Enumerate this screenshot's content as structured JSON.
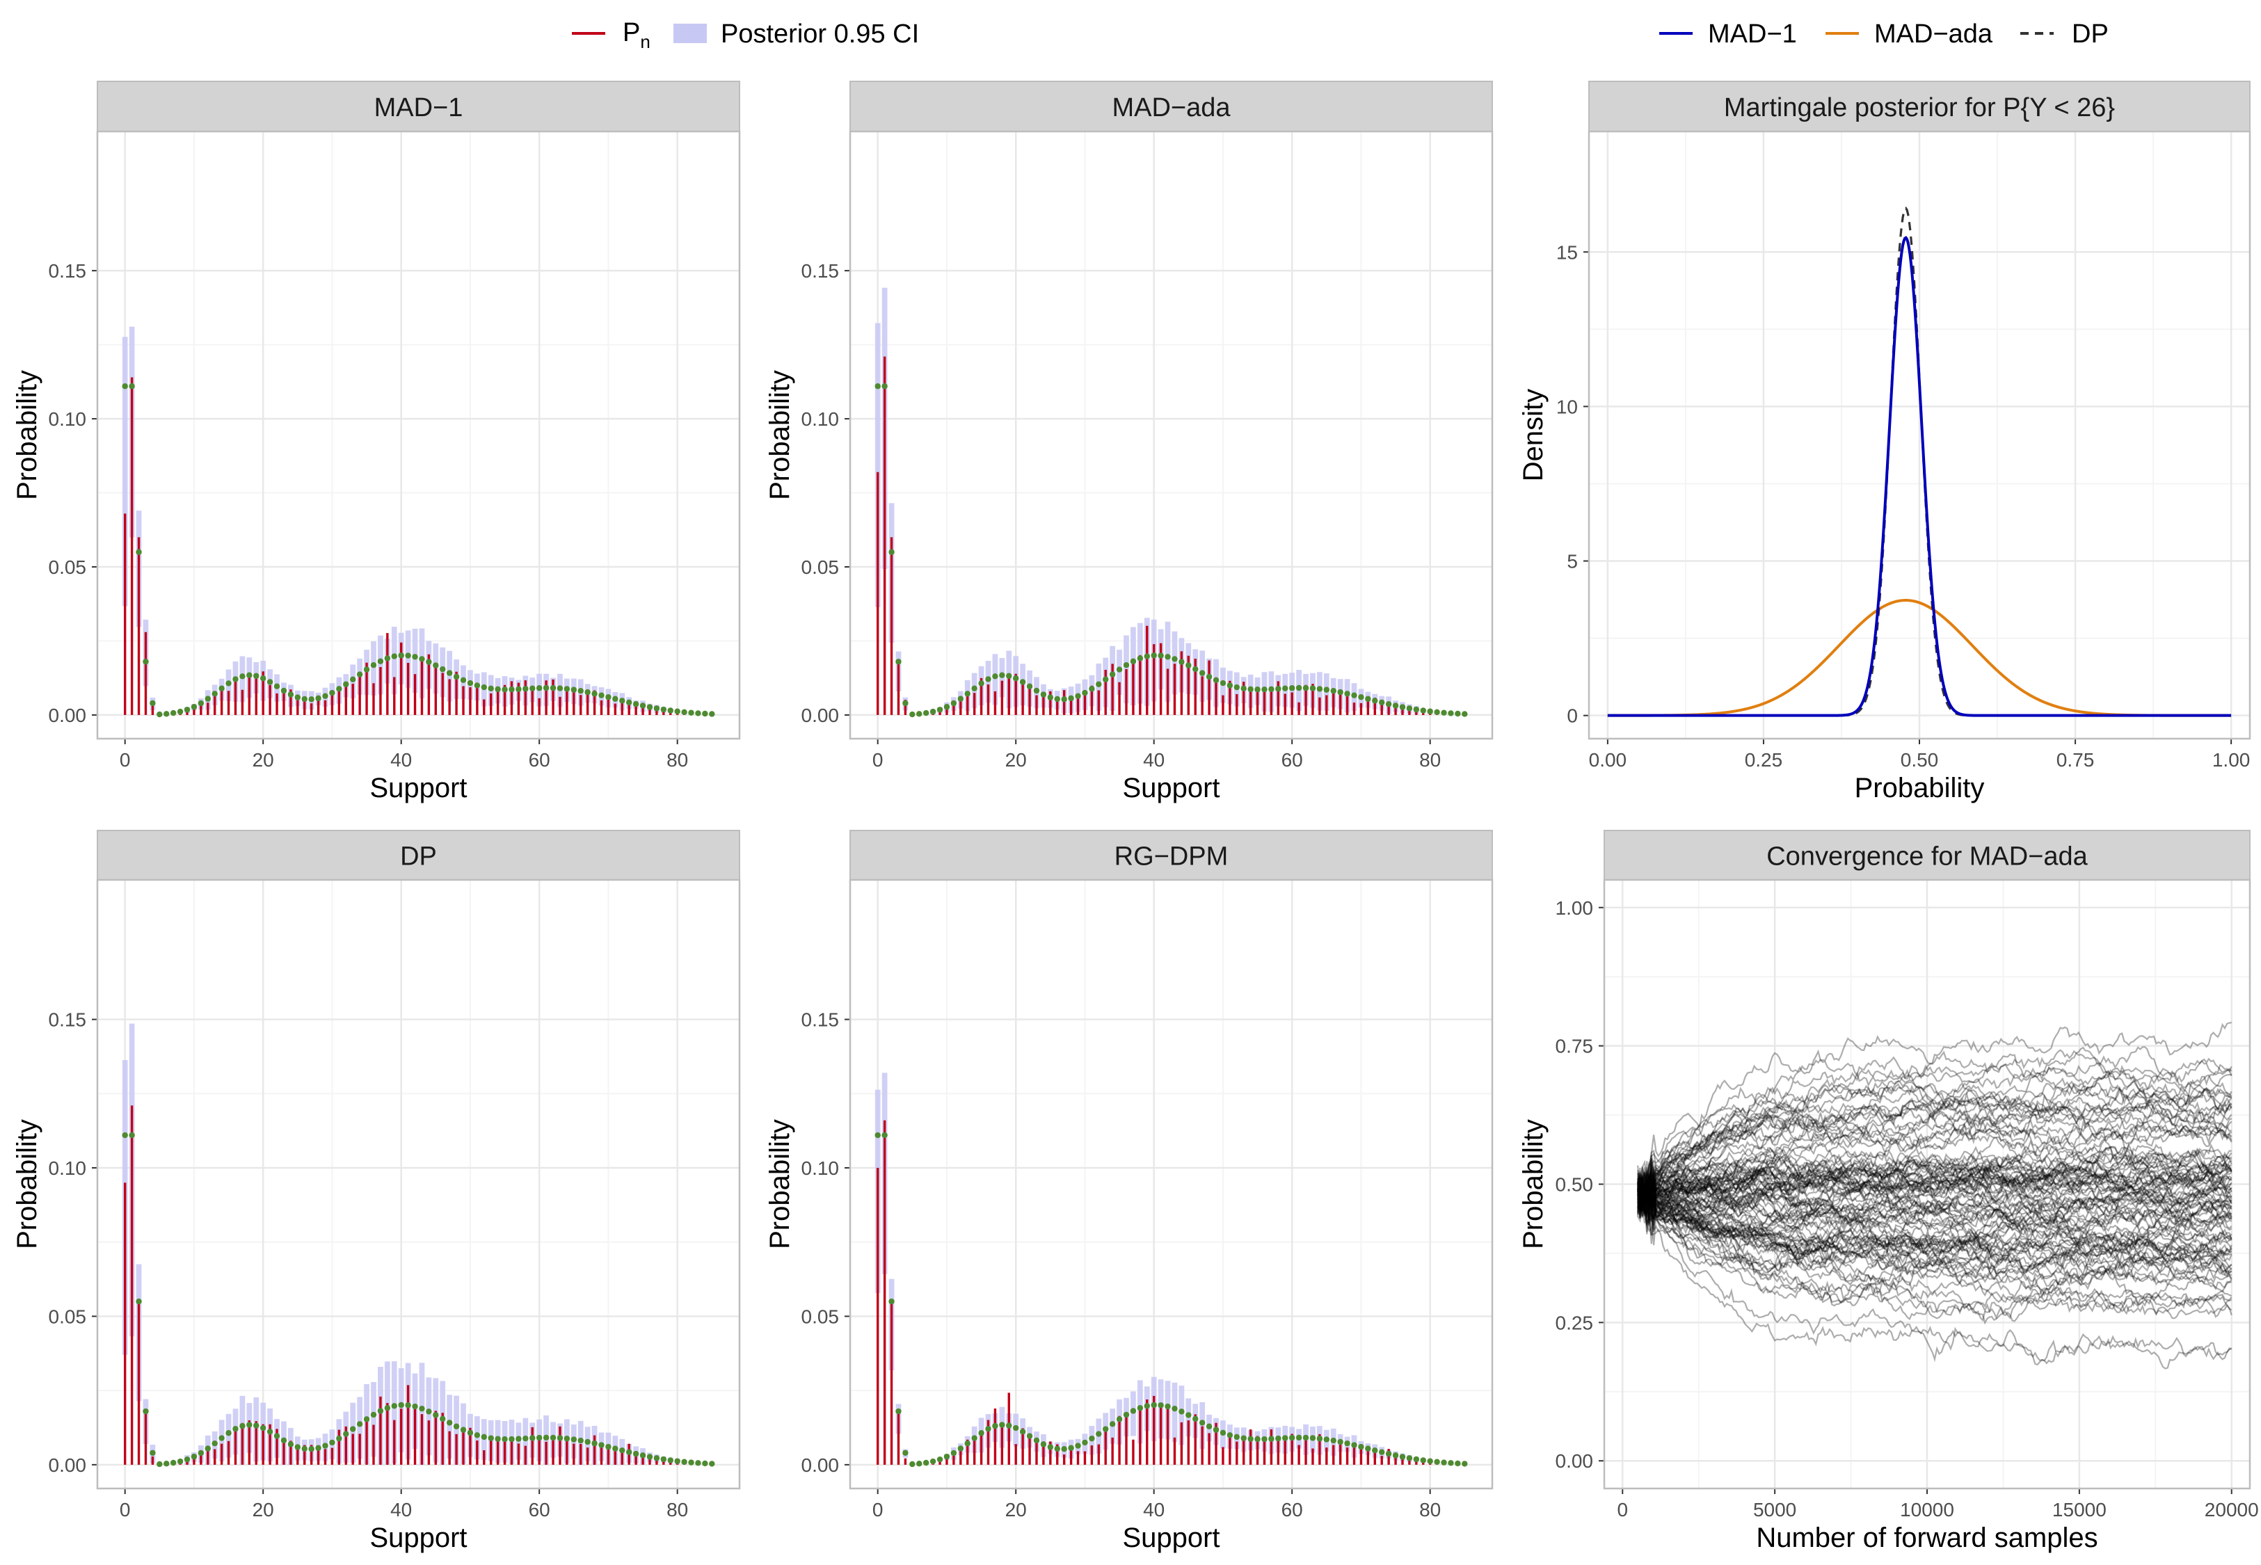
{
  "legend_left": {
    "pn_label": "P",
    "pn_subscript": "n",
    "ci_label": "Posterior 0.95 CI"
  },
  "legend_right": {
    "items": [
      {
        "label": "MAD−1",
        "color": "#0000bb",
        "dash": false
      },
      {
        "label": "MAD−ada",
        "color": "#e07f10",
        "dash": false
      },
      {
        "label": "DP",
        "color": "#333333",
        "dash": true
      }
    ]
  },
  "colors": {
    "pn_line": "#c00018",
    "ci_fill": "#c8c8f4",
    "point": "#4e8a30",
    "strip_bg": "#d3d3d3",
    "grid_major": "#e8e8e8",
    "grid_minor": "#f4f4f4",
    "panel_border": "#bdbdbd",
    "trace": "#000000"
  },
  "chart_data": [
    {
      "id": "mad1",
      "type": "bar",
      "title": "MAD−1",
      "xlabel": "Support",
      "ylabel": "Probability",
      "xlim": [
        -4,
        89
      ],
      "ylim": [
        -0.008,
        0.197
      ],
      "xticks": [
        0,
        20,
        40,
        60,
        80
      ],
      "yticks": [
        0.0,
        0.05,
        0.1,
        0.15
      ],
      "ytick_labels": [
        "0.00",
        "0.05",
        "0.10",
        "0.15"
      ],
      "ci_scale": 1.25,
      "spike": {
        "0": 0.068,
        "1": 0.114,
        "2": 0.06,
        "3": 0.028
      }
    },
    {
      "id": "madada",
      "type": "bar",
      "title": "MAD−ada",
      "xlabel": "Support",
      "ylabel": "Probability",
      "xlim": [
        -4,
        89
      ],
      "ylim": [
        -0.008,
        0.197
      ],
      "xticks": [
        0,
        20,
        40,
        60,
        80
      ],
      "yticks": [
        0.0,
        0.05,
        0.1,
        0.15
      ],
      "ytick_labels": [
        "0.00",
        "0.05",
        "0.10",
        "0.15"
      ],
      "ci_scale": 1.6,
      "spike": {
        "0": 0.082,
        "1": 0.121,
        "2": 0.06,
        "3": 0.018
      }
    },
    {
      "id": "dp",
      "type": "bar",
      "title": "DP",
      "xlabel": "Support",
      "ylabel": "Probability",
      "xlim": [
        -4,
        89
      ],
      "ylim": [
        -0.008,
        0.197
      ],
      "xticks": [
        0,
        20,
        40,
        60,
        80
      ],
      "yticks": [
        0.0,
        0.05,
        0.1,
        0.15
      ],
      "ytick_labels": [
        "0.00",
        "0.05",
        "0.10",
        "0.15"
      ],
      "ci_scale": 1.9,
      "spike": {
        "0": 0.095,
        "1": 0.121,
        "2": 0.055,
        "3": 0.018
      }
    },
    {
      "id": "rgdpm",
      "type": "bar",
      "title": "RG−DPM",
      "xlabel": "Support",
      "ylabel": "Probability",
      "xlim": [
        -4,
        89
      ],
      "ylim": [
        -0.008,
        0.197
      ],
      "xticks": [
        0,
        20,
        40,
        60,
        80
      ],
      "yticks": [
        0.0,
        0.05,
        0.1,
        0.15
      ],
      "ytick_labels": [
        "0.00",
        "0.05",
        "0.10",
        "0.15"
      ],
      "ci_scale": 1.15,
      "spike": {
        "0": 0.1,
        "1": 0.116,
        "2": 0.055,
        "3": 0.018
      }
    },
    {
      "id": "martingale",
      "type": "line",
      "title": "Martingale posterior for P{Y < 26}",
      "xlabel": "Probability",
      "ylabel": "Density",
      "xlim": [
        -0.03,
        1.03
      ],
      "ylim": [
        -0.75,
        18.9
      ],
      "xticks": [
        0.0,
        0.25,
        0.5,
        0.75,
        1.0
      ],
      "xtick_labels": [
        "0.00",
        "0.25",
        "0.50",
        "0.75",
        "1.00"
      ],
      "yticks": [
        0,
        5,
        10,
        15
      ],
      "ytick_labels": [
        "0",
        "5",
        "10",
        "15"
      ],
      "series": [
        {
          "name": "MAD−1",
          "mean": 0.478,
          "sd": 0.0258,
          "color": "#0000bb",
          "dash": false
        },
        {
          "name": "MAD−ada",
          "mean": 0.478,
          "sd": 0.107,
          "color": "#e07f10",
          "dash": false
        },
        {
          "name": "DP",
          "mean": 0.478,
          "sd": 0.0243,
          "color": "#333333",
          "dash": true
        }
      ]
    },
    {
      "id": "convergence",
      "type": "line",
      "title": "Convergence for MAD−ada",
      "xlabel": "Number of forward samples",
      "ylabel": "Probability",
      "xlim": [
        -600,
        20600
      ],
      "ylim": [
        -0.05,
        1.05
      ],
      "xticks": [
        0,
        5000,
        10000,
        15000,
        20000
      ],
      "xtick_labels": [
        "0",
        "5000",
        "10000",
        "15000",
        "20000"
      ],
      "yticks": [
        0.0,
        0.25,
        0.5,
        0.75,
        1.0
      ],
      "ytick_labels": [
        "0.00",
        "0.25",
        "0.50",
        "0.75",
        "1.00"
      ],
      "start_x": 500,
      "end_x": 20000,
      "start_value": 0.48,
      "n_traces": 100,
      "final_range": [
        0.2,
        0.76
      ]
    }
  ],
  "pmf_model": {
    "support_max": 85,
    "components": [
      {
        "weight": 0.2,
        "mean": 18,
        "sd": 4.5
      },
      {
        "weight": 0.46,
        "mean": 40,
        "sd": 7.0
      },
      {
        "weight": 0.27,
        "mean": 62,
        "sd": 9.0
      }
    ],
    "point_values": {
      "0": 0.111,
      "1": 0.111,
      "2": 0.055,
      "3": 0.018,
      "4": 0.004
    }
  }
}
